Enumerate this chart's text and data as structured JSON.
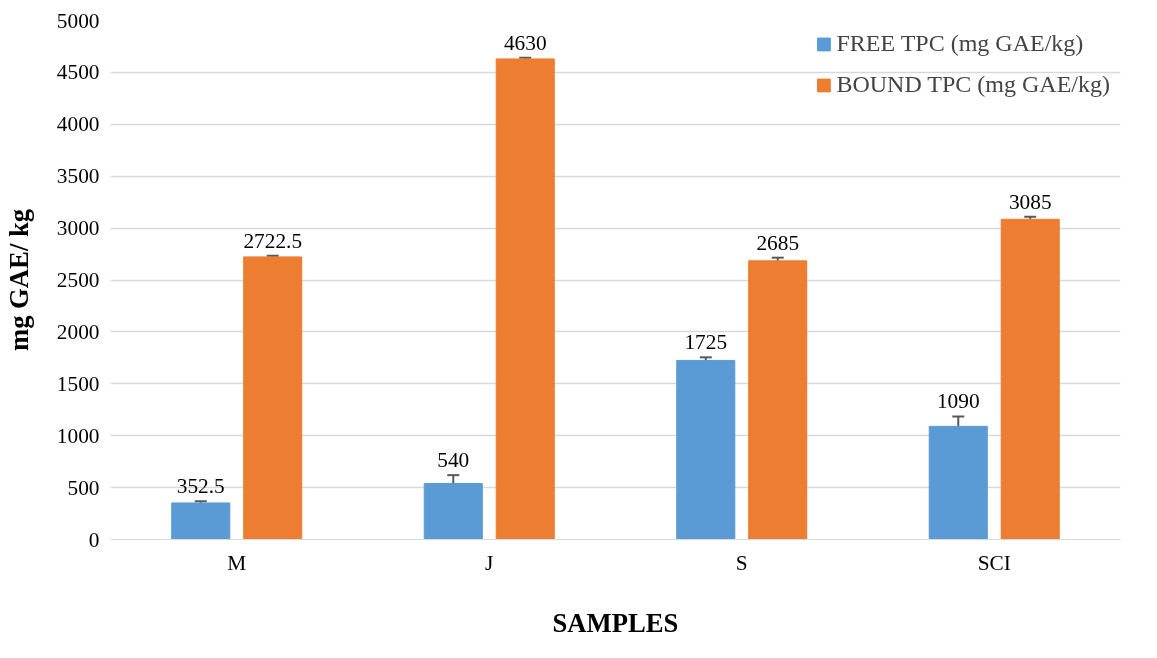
{
  "chart_data": {
    "type": "bar",
    "categories": [
      "M",
      "J",
      "S",
      "SCI"
    ],
    "xlabel": "SAMPLES",
    "ylabel": "mg GAE/ kg",
    "series": [
      {
        "name": "FREE TPC (mg GAE/kg)",
        "color": "#5b9bd5",
        "values": [
          352.5,
          540,
          1725,
          1090
        ],
        "errors": [
          15,
          80,
          30,
          95
        ]
      },
      {
        "name": "BOUND TPC (mg GAE/kg)",
        "color": "#ed7d31",
        "values": [
          2722.5,
          4630,
          2685,
          3085
        ],
        "errors": [
          10,
          10,
          30,
          25
        ]
      }
    ],
    "ylim": [
      0,
      5000
    ],
    "yticks": [
      0,
      500,
      1000,
      1500,
      2000,
      2500,
      3000,
      3500,
      4000,
      4500,
      5000
    ],
    "grid": "y",
    "legend": "top right",
    "data_labels": true
  }
}
